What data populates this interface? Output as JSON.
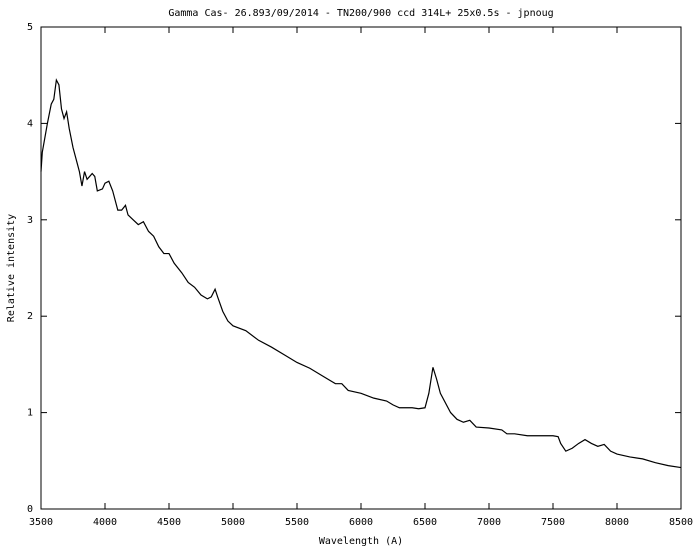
{
  "chart_data": {
    "type": "line",
    "title": "Gamma Cas- 26.893/09/2014 - TN200/900 ccd 314L+ 25x0.5s - jpnoug",
    "x_label": "Wavelength (A)",
    "y_label": "Relative intensity",
    "color": "#000000",
    "x": [
      3500,
      3510,
      3530,
      3550,
      3580,
      3600,
      3620,
      3640,
      3660,
      3680,
      3700,
      3720,
      3750,
      3780,
      3800,
      3820,
      3840,
      3860,
      3880,
      3900,
      3920,
      3940,
      3980,
      4000,
      4030,
      4060,
      4100,
      4130,
      4160,
      4180,
      4220,
      4260,
      4300,
      4340,
      4380,
      4420,
      4460,
      4500,
      4540,
      4600,
      4650,
      4700,
      4750,
      4800,
      4830,
      4860,
      4880,
      4920,
      4960,
      5000,
      5100,
      5200,
      5300,
      5400,
      5500,
      5600,
      5700,
      5800,
      5850,
      5900,
      6000,
      6100,
      6200,
      6250,
      6300,
      6400,
      6450,
      6500,
      6530,
      6562,
      6590,
      6620,
      6700,
      6750,
      6800,
      6850,
      6900,
      7000,
      7100,
      7140,
      7200,
      7300,
      7400,
      7500,
      7540,
      7560,
      7600,
      7650,
      7700,
      7750,
      7800,
      7850,
      7900,
      7950,
      8000,
      8100,
      8200,
      8300,
      8400,
      8500
    ],
    "values": [
      3.5,
      3.7,
      3.85,
      4.0,
      4.2,
      4.25,
      4.45,
      4.4,
      4.15,
      4.05,
      4.12,
      3.95,
      3.75,
      3.6,
      3.5,
      3.35,
      3.5,
      3.42,
      3.45,
      3.48,
      3.45,
      3.3,
      3.32,
      3.38,
      3.4,
      3.3,
      3.1,
      3.1,
      3.15,
      3.05,
      3.0,
      2.95,
      2.98,
      2.88,
      2.83,
      2.72,
      2.65,
      2.65,
      2.55,
      2.45,
      2.35,
      2.3,
      2.22,
      2.18,
      2.2,
      2.28,
      2.2,
      2.05,
      1.95,
      1.9,
      1.85,
      1.75,
      1.68,
      1.6,
      1.52,
      1.46,
      1.38,
      1.3,
      1.3,
      1.23,
      1.2,
      1.15,
      1.12,
      1.08,
      1.05,
      1.05,
      1.04,
      1.05,
      1.2,
      1.47,
      1.35,
      1.2,
      1.0,
      0.93,
      0.9,
      0.92,
      0.85,
      0.84,
      0.82,
      0.78,
      0.78,
      0.76,
      0.76,
      0.76,
      0.75,
      0.68,
      0.6,
      0.63,
      0.68,
      0.72,
      0.68,
      0.65,
      0.67,
      0.6,
      0.57,
      0.54,
      0.52,
      0.48,
      0.45,
      0.43
    ],
    "xlim": [
      3500,
      8500
    ],
    "xticks": [
      3500,
      4000,
      4500,
      5000,
      5500,
      6000,
      6500,
      7000,
      7500,
      8000,
      8500
    ],
    "ylim": [
      0,
      5
    ],
    "yticks": [
      0,
      1,
      2,
      3,
      4,
      5
    ],
    "grid": false
  }
}
